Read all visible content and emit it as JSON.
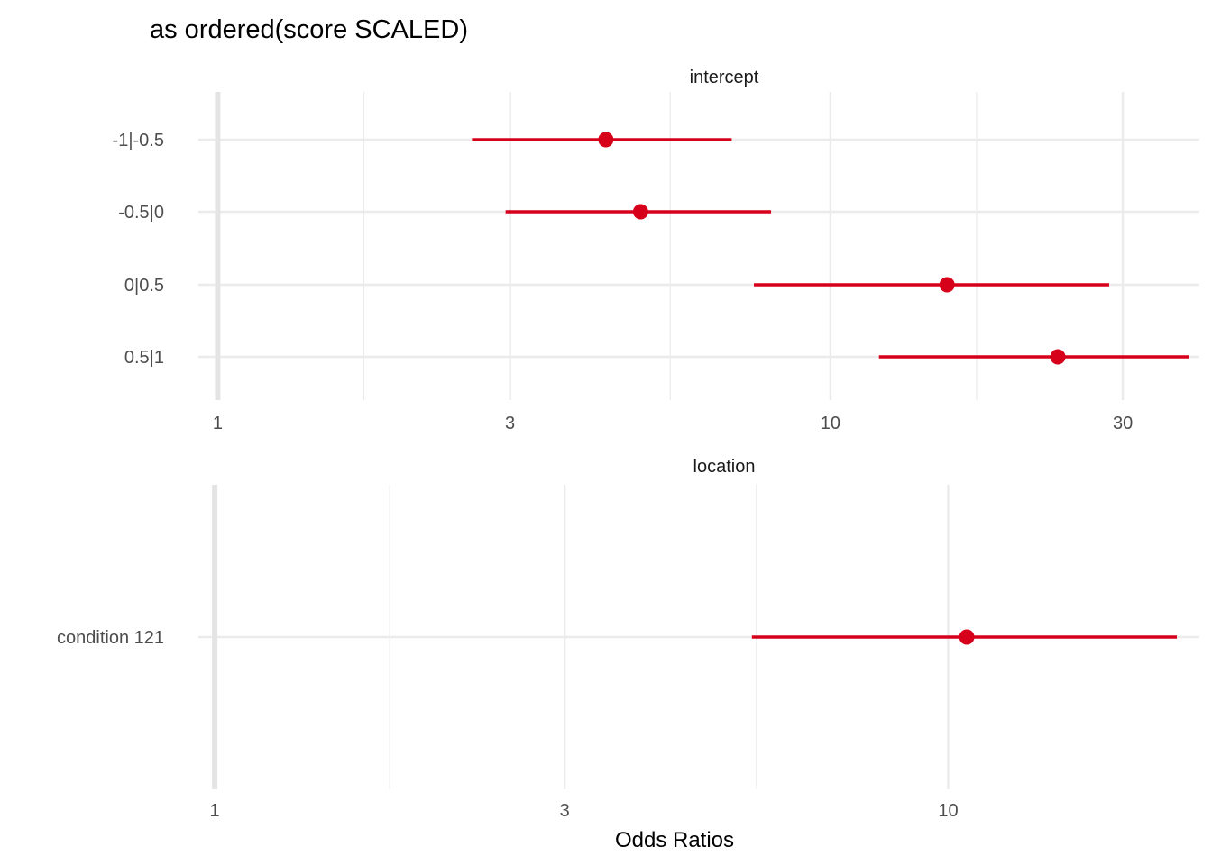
{
  "chart_data": {
    "title": "as ordered(score SCALED)",
    "xlabel": "Odds Ratios",
    "x_scale": "log10",
    "point_color": "#d7001b",
    "grid_color": "#ebebeb",
    "reference_line_x": 1,
    "panels": [
      {
        "type": "forest",
        "strip_label": "intercept",
        "xlim": [
          0.93,
          40
        ],
        "x_ticks": [
          1,
          3,
          10,
          30
        ],
        "x_tick_labels": [
          "1",
          "3",
          "10",
          "30"
        ],
        "rows": [
          {
            "label": "-1|-0.5",
            "estimate": 4.3,
            "lower": 2.6,
            "upper": 6.9
          },
          {
            "label": "-0.5|0",
            "estimate": 4.9,
            "lower": 2.95,
            "upper": 8.0
          },
          {
            "label": "0|0.5",
            "estimate": 15.5,
            "lower": 7.5,
            "upper": 28.5
          },
          {
            "label": "0.5|1",
            "estimate": 23.5,
            "lower": 12.0,
            "upper": 38.5
          }
        ]
      },
      {
        "type": "forest",
        "strip_label": "location",
        "xlim": [
          0.95,
          22
        ],
        "x_ticks": [
          1,
          3,
          10
        ],
        "x_tick_labels": [
          "1",
          "3",
          "10"
        ],
        "rows": [
          {
            "label": "condition 121",
            "estimate": 10.6,
            "lower": 5.4,
            "upper": 20.5
          }
        ]
      }
    ]
  }
}
